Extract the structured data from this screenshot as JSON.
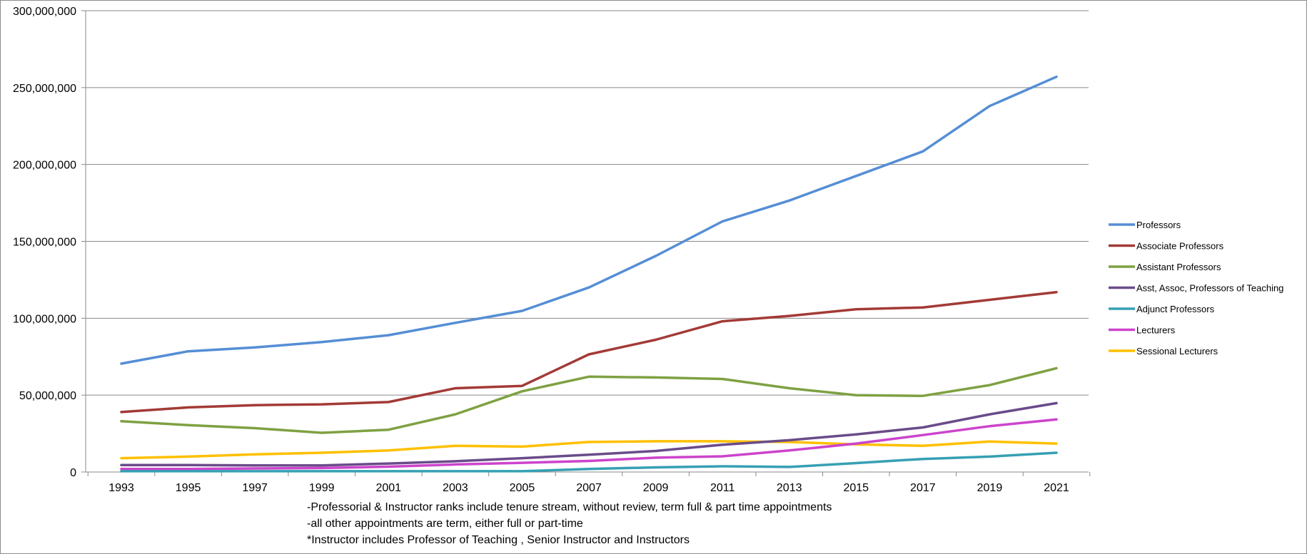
{
  "chart_data": {
    "type": "line",
    "title": "",
    "xlabel": "",
    "ylabel": "",
    "x": [
      "1993",
      "1995",
      "1997",
      "1999",
      "2001",
      "2003",
      "2005",
      "2007",
      "2009",
      "2011",
      "2013",
      "2015",
      "2017",
      "2019",
      "2021"
    ],
    "ylim": [
      0,
      300000000
    ],
    "yticks": [
      0,
      50000000,
      100000000,
      150000000,
      200000000,
      250000000,
      300000000
    ],
    "ytick_labels": [
      "0",
      "50,000,000",
      "100,000,000",
      "150,000,000",
      "200,000,000",
      "250,000,000",
      "300,000,000"
    ],
    "grid": "horizontal",
    "legend_position": "right",
    "series": [
      {
        "name": "Professors",
        "color": "#558ED5",
        "values": [
          70500000,
          78500000,
          81000000,
          84500000,
          89000000,
          97000000,
          104800000,
          120000000,
          140500000,
          163000000,
          176500000,
          192500000,
          208500000,
          238000000,
          257000000
        ]
      },
      {
        "name": "Associate Professors",
        "color": "#A33A36",
        "values": [
          39000000,
          42000000,
          43500000,
          44000000,
          45500000,
          54500000,
          56000000,
          76500000,
          86000000,
          98000000,
          101500000,
          105800000,
          107000000,
          112000000,
          117000000
        ]
      },
      {
        "name": "Assistant Professors",
        "color": "#7EA142",
        "values": [
          33000000,
          30500000,
          28500000,
          25500000,
          27500000,
          37500000,
          52500000,
          62000000,
          61500000,
          60500000,
          54500000,
          50000000,
          49500000,
          56500000,
          67500000
        ]
      },
      {
        "name": "Asst, Assoc, Professors of Teaching",
        "color": "#6A4B8A",
        "values": [
          4500000,
          4500000,
          4300000,
          4300000,
          5500000,
          7000000,
          9000000,
          11200000,
          13700000,
          17700000,
          20700000,
          24500000,
          29000000,
          37500000,
          44800000
        ]
      },
      {
        "name": "Adjunct Professors",
        "color": "#36A0B3",
        "values": [
          500000,
          500000,
          500000,
          500000,
          500000,
          500000,
          500000,
          2000000,
          3000000,
          3700000,
          3300000,
          5800000,
          8500000,
          10000000,
          12500000
        ]
      },
      {
        "name": "Lecturers",
        "color": "#CC44CC",
        "values": [
          2000000,
          2000000,
          2300000,
          2600000,
          3500000,
          4900000,
          6000000,
          7200000,
          9300000,
          10200000,
          14000000,
          18500000,
          24000000,
          29800000,
          34200000
        ]
      },
      {
        "name": "Sessional Lecturers",
        "color": "#FFC000",
        "values": [
          9000000,
          10000000,
          11500000,
          12500000,
          14000000,
          17000000,
          16500000,
          19500000,
          20000000,
          20000000,
          19500000,
          18000000,
          17000000,
          19800000,
          18500000
        ]
      }
    ]
  },
  "notes": [
    "-Professorial & Instructor ranks include tenure stream, without review, term full & part time appointments",
    "-all other appointments are term, either full or part-time",
    "*Instructor includes Professor of Teaching , Senior Instructor and Instructors"
  ]
}
